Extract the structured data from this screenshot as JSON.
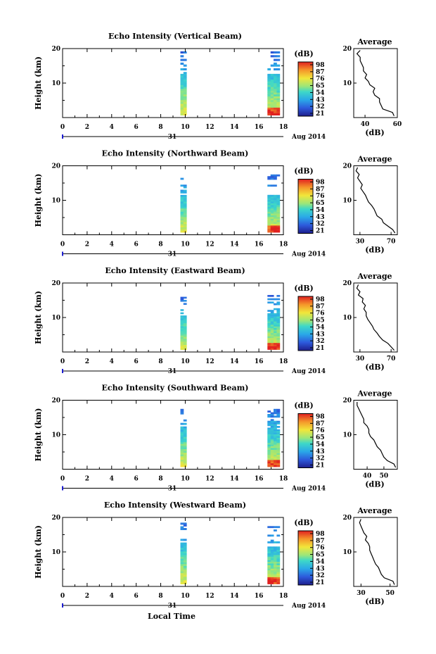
{
  "figure": {
    "xlabel": "Local Time",
    "date_label": "Aug 2014",
    "day_label": "31",
    "colorbar_unit": "(dB)",
    "avg_title": "Average",
    "avg_xunit": "(dB)"
  },
  "chart_data": [
    {
      "type": "heatmap",
      "title": "Echo Intensity (Vertical Beam)",
      "xlabel": "Local Time",
      "ylabel": "Height (km)",
      "xlim": [
        0,
        18
      ],
      "ylim": [
        0,
        20
      ],
      "xticks": [
        "0",
        "2",
        "4",
        "6",
        "8",
        "10",
        "12",
        "14",
        "16",
        "18"
      ],
      "yticks": [
        "20",
        "10"
      ],
      "colorbar_ticks": [
        "98",
        "87",
        "76",
        "65",
        "54",
        "43",
        "32",
        "21"
      ],
      "colorbar_range": [
        21,
        98
      ],
      "data_blocks": [
        {
          "time_start": 9.6,
          "time_end": 10.1,
          "height_min": 0.7,
          "height_max": 19.2
        },
        {
          "time_start": 16.7,
          "time_end": 17.7,
          "height_min": 0.7,
          "height_max": 19.2
        }
      ],
      "profile": {
        "title": "Average",
        "xlabel": "(dB)",
        "xticks": [
          "40",
          "60"
        ],
        "xlim": [
          33,
          60
        ],
        "yticks": [
          "20",
          "10"
        ],
        "ylim": [
          0,
          20
        ],
        "points": [
          [
            58,
            0.5
          ],
          [
            57,
            1.5
          ],
          [
            51,
            2.5
          ],
          [
            50,
            3.5
          ],
          [
            49,
            4.5
          ],
          [
            49,
            5.5
          ],
          [
            46,
            6.5
          ],
          [
            45,
            7.5
          ],
          [
            46,
            8.5
          ],
          [
            43,
            9.5
          ],
          [
            42,
            10.5
          ],
          [
            40,
            11.5
          ],
          [
            41,
            12.5
          ],
          [
            39,
            13.5
          ],
          [
            39,
            14.5
          ],
          [
            38,
            15.5
          ],
          [
            37,
            16.5
          ],
          [
            37,
            17.5
          ],
          [
            35,
            18.5
          ],
          [
            37,
            19.5
          ]
        ]
      }
    },
    {
      "type": "heatmap",
      "title": "Echo Intensity (Northward Beam)",
      "xlabel": "Local Time",
      "ylabel": "Height (km)",
      "xlim": [
        0,
        18
      ],
      "ylim": [
        0,
        20
      ],
      "xticks": [
        "0",
        "2",
        "4",
        "6",
        "8",
        "10",
        "12",
        "14",
        "16",
        "18"
      ],
      "yticks": [
        "20",
        "10"
      ],
      "colorbar_ticks": [
        "98",
        "87",
        "76",
        "65",
        "54",
        "43",
        "32",
        "21"
      ],
      "colorbar_range": [
        21,
        98
      ],
      "data_blocks": [
        {
          "time_start": 9.6,
          "time_end": 10.1,
          "height_min": 0.7,
          "height_max": 17.5
        },
        {
          "time_start": 16.7,
          "time_end": 17.7,
          "height_min": 0.7,
          "height_max": 17.5
        }
      ],
      "profile": {
        "title": "Average",
        "xlabel": "(dB)",
        "xticks": [
          "30",
          "70"
        ],
        "xlim": [
          22,
          78
        ],
        "yticks": [
          "20",
          "10"
        ],
        "ylim": [
          0,
          20
        ],
        "points": [
          [
            75,
            0.5
          ],
          [
            72,
            1.5
          ],
          [
            66,
            2.5
          ],
          [
            60,
            3.5
          ],
          [
            58,
            4.5
          ],
          [
            52,
            5.5
          ],
          [
            50,
            6.5
          ],
          [
            48,
            7.5
          ],
          [
            45,
            8.5
          ],
          [
            41,
            9.5
          ],
          [
            39,
            10.5
          ],
          [
            37,
            11.5
          ],
          [
            34,
            12.5
          ],
          [
            31,
            13.5
          ],
          [
            33,
            14.5
          ],
          [
            30,
            15.5
          ],
          [
            27,
            16.5
          ],
          [
            29,
            17.5
          ],
          [
            25,
            18.5
          ],
          [
            27,
            19.5
          ]
        ]
      }
    },
    {
      "type": "heatmap",
      "title": "Echo Intensity (Eastward Beam)",
      "xlabel": "Local Time",
      "ylabel": "Height (km)",
      "xlim": [
        0,
        18
      ],
      "ylim": [
        0,
        20
      ],
      "xticks": [
        "0",
        "2",
        "4",
        "6",
        "8",
        "10",
        "12",
        "14",
        "16",
        "18"
      ],
      "yticks": [
        "20",
        "10"
      ],
      "colorbar_ticks": [
        "98",
        "87",
        "76",
        "65",
        "54",
        "43",
        "32",
        "21"
      ],
      "colorbar_range": [
        21,
        98
      ],
      "data_blocks": [
        {
          "time_start": 9.6,
          "time_end": 10.1,
          "height_min": 0.7,
          "height_max": 16.0
        },
        {
          "time_start": 16.7,
          "time_end": 17.7,
          "height_min": 0.7,
          "height_max": 17.0
        }
      ],
      "profile": {
        "title": "Average",
        "xlabel": "(dB)",
        "xticks": [
          "30",
          "70"
        ],
        "xlim": [
          22,
          78
        ],
        "yticks": [
          "20",
          "10"
        ],
        "ylim": [
          0,
          20
        ],
        "points": [
          [
            74,
            0.5
          ],
          [
            70,
            1.5
          ],
          [
            66,
            2.5
          ],
          [
            59,
            3.5
          ],
          [
            55,
            4.5
          ],
          [
            52,
            5.5
          ],
          [
            48,
            6.5
          ],
          [
            46,
            7.5
          ],
          [
            43,
            8.5
          ],
          [
            40,
            9.5
          ],
          [
            38,
            10.5
          ],
          [
            38,
            11.5
          ],
          [
            35,
            12.5
          ],
          [
            37,
            13.5
          ],
          [
            33,
            14.5
          ],
          [
            34,
            15.5
          ],
          [
            28,
            16.5
          ],
          [
            30,
            17.5
          ],
          [
            26,
            18.5
          ],
          [
            28,
            19.5
          ]
        ]
      }
    },
    {
      "type": "heatmap",
      "title": "Echo Intensity (Southward Beam)",
      "xlabel": "Local Time",
      "ylabel": "Height (km)",
      "xlim": [
        0,
        18
      ],
      "ylim": [
        0,
        20
      ],
      "xticks": [
        "0",
        "2",
        "4",
        "6",
        "8",
        "10",
        "12",
        "14",
        "16",
        "18"
      ],
      "yticks": [
        "20",
        "10"
      ],
      "colorbar_ticks": [
        "98",
        "87",
        "76",
        "65",
        "54",
        "43",
        "32",
        "21"
      ],
      "colorbar_range": [
        21,
        98
      ],
      "data_blocks": [
        {
          "time_start": 9.6,
          "time_end": 10.1,
          "height_min": 0.7,
          "height_max": 18.0
        },
        {
          "time_start": 16.7,
          "time_end": 17.7,
          "height_min": 0.7,
          "height_max": 17.5
        }
      ],
      "profile": {
        "title": "Average",
        "xlabel": "(dB)",
        "xticks": [
          "40",
          "50"
        ],
        "xlim": [
          32,
          58
        ],
        "yticks": [
          "20",
          "10"
        ],
        "ylim": [
          0,
          20
        ],
        "points": [
          [
            57,
            0.5
          ],
          [
            56,
            1.5
          ],
          [
            52,
            2.5
          ],
          [
            50,
            3.5
          ],
          [
            49,
            4.5
          ],
          [
            48,
            5.5
          ],
          [
            46,
            6.5
          ],
          [
            45,
            7.5
          ],
          [
            44,
            8.5
          ],
          [
            42,
            9.5
          ],
          [
            41,
            10.5
          ],
          [
            41,
            11.5
          ],
          [
            40,
            12.5
          ],
          [
            38,
            13.5
          ],
          [
            38,
            14.5
          ],
          [
            37,
            15.5
          ],
          [
            36,
            16.5
          ],
          [
            35,
            17.5
          ],
          [
            34,
            18.5
          ],
          [
            34,
            19.5
          ]
        ]
      }
    },
    {
      "type": "heatmap",
      "title": "Echo Intensity (Westward Beam)",
      "xlabel": "Local Time",
      "ylabel": "Height (km)",
      "xlim": [
        0,
        18
      ],
      "ylim": [
        0,
        20
      ],
      "xticks": [
        "0",
        "2",
        "4",
        "6",
        "8",
        "10",
        "12",
        "14",
        "16",
        "18"
      ],
      "yticks": [
        "20",
        "10"
      ],
      "colorbar_ticks": [
        "98",
        "87",
        "76",
        "65",
        "54",
        "43",
        "32",
        "21"
      ],
      "colorbar_range": [
        21,
        98
      ],
      "data_blocks": [
        {
          "time_start": 9.6,
          "time_end": 10.1,
          "height_min": 0.7,
          "height_max": 18.5
        },
        {
          "time_start": 16.7,
          "time_end": 17.7,
          "height_min": 0.7,
          "height_max": 17.5
        }
      ],
      "profile": {
        "title": "Average",
        "xlabel": "(dB)",
        "xticks": [
          "30",
          "50"
        ],
        "xlim": [
          25,
          55
        ],
        "yticks": [
          "20",
          "10"
        ],
        "ylim": [
          0,
          20
        ],
        "points": [
          [
            53,
            0.5
          ],
          [
            52,
            1.5
          ],
          [
            46,
            2.5
          ],
          [
            44,
            3.5
          ],
          [
            43,
            4.5
          ],
          [
            42,
            5.5
          ],
          [
            40,
            6.5
          ],
          [
            39,
            7.5
          ],
          [
            38,
            8.5
          ],
          [
            37,
            9.5
          ],
          [
            36,
            10.5
          ],
          [
            36,
            11.5
          ],
          [
            35,
            12.5
          ],
          [
            33,
            13.5
          ],
          [
            34,
            14.5
          ],
          [
            32,
            15.5
          ],
          [
            31,
            16.5
          ],
          [
            30,
            17.5
          ],
          [
            29,
            18.5
          ],
          [
            30,
            19.5
          ]
        ]
      }
    }
  ]
}
